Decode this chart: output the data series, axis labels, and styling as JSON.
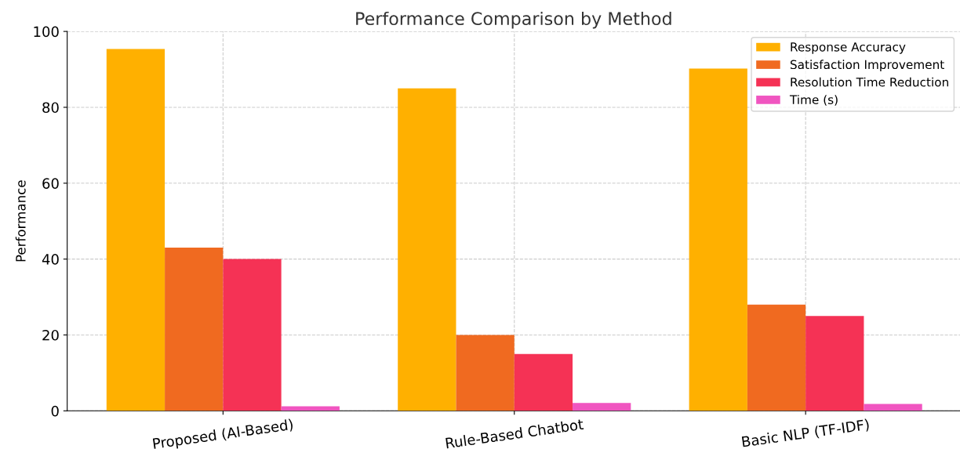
{
  "chart_data": {
    "type": "bar",
    "title": "Performance Comparison by Method",
    "ylabel": "Performance",
    "categories": [
      "Proposed (AI-Based)",
      "Rule-Based Chatbot",
      "Basic NLP (TF-IDF)"
    ],
    "series": [
      {
        "name": "Response Accuracy",
        "color": "#ffb000",
        "values": [
          95.4,
          85,
          90.2
        ]
      },
      {
        "name": "Satisfaction Improvement",
        "color": "#f06a20",
        "values": [
          43,
          20,
          28
        ]
      },
      {
        "name": "Resolution Time Reduction",
        "color": "#f53255",
        "values": [
          40,
          15,
          25
        ]
      },
      {
        "name": "Time (s)",
        "color": "#f055c0",
        "values": [
          1.2,
          2.1,
          1.8
        ]
      }
    ],
    "ylim": [
      0,
      100
    ],
    "yticks": [
      0,
      20,
      40,
      60,
      80,
      100
    ],
    "grid": true,
    "legend": "top right"
  }
}
